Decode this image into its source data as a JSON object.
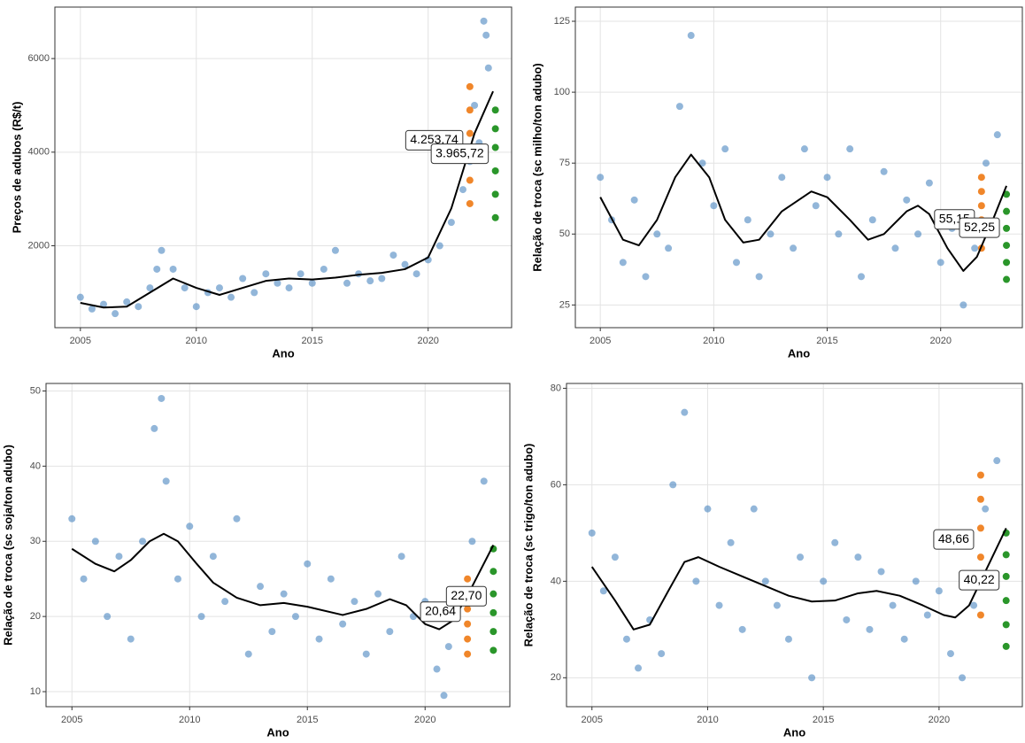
{
  "chart_data": [
    {
      "type": "scatter",
      "x_label": "Ano",
      "y_label": "Preços de adubos (R$/t)",
      "xlim": [
        2003.9,
        2023.6
      ],
      "xticks": [
        2005,
        2010,
        2015,
        2020
      ],
      "ylim": [
        250,
        7100
      ],
      "yticks": [
        2000,
        4000,
        6000
      ],
      "grid": true,
      "series": [
        {
          "mark": "point",
          "color": "#4a86c0",
          "x": [
            2005,
            2005.5,
            2006,
            2006.5,
            2007,
            2007.5,
            2008,
            2008.5,
            2009,
            2009.5,
            2010,
            2010.5,
            2011,
            2011.5,
            2012,
            2012.5,
            2013,
            2013.5,
            2014,
            2014.5,
            2015,
            2015.5,
            2016,
            2016.5,
            2017,
            2017.5,
            2018,
            2018.5,
            2019,
            2019.5,
            2020,
            2020.5,
            2021,
            2021.5,
            2022,
            2022.5,
            2022.2,
            2022.4,
            2022.6,
            2008.3,
            2021.8
          ],
          "values": [
            900,
            650,
            750,
            550,
            800,
            700,
            1100,
            1900,
            1500,
            1100,
            700,
            1000,
            1100,
            900,
            1300,
            1000,
            1400,
            1200,
            1100,
            1400,
            1200,
            1500,
            1900,
            1200,
            1400,
            1250,
            1300,
            1800,
            1600,
            1400,
            1700,
            2000,
            2500,
            3200,
            5000,
            6500,
            4200,
            6800,
            5800,
            1500,
            3800
          ]
        },
        {
          "mark": "point",
          "color": "#f0862a",
          "x": [
            2021.8,
            2021.8,
            2021.8,
            2021.8,
            2021.8,
            2021.8
          ],
          "values": [
            2900,
            3400,
            3900,
            4400,
            4900,
            5400
          ]
        },
        {
          "mark": "point",
          "color": "#2a962a",
          "x": [
            2022.9,
            2022.9,
            2022.9,
            2022.9,
            2022.9,
            2022.9
          ],
          "values": [
            2600,
            3100,
            3600,
            4100,
            4500,
            4900
          ]
        },
        {
          "mark": "line",
          "color": "#000000",
          "x": [
            2005,
            2006,
            2007,
            2008,
            2009,
            2010,
            2011,
            2012,
            2013,
            2014,
            2015,
            2016,
            2017,
            2018,
            2019,
            2020,
            2021,
            2022,
            2022.8
          ],
          "values": [
            780,
            680,
            700,
            1000,
            1300,
            1100,
            950,
            1100,
            1250,
            1300,
            1280,
            1320,
            1380,
            1420,
            1500,
            1750,
            2800,
            4400,
            5300
          ]
        }
      ],
      "annotations": [
        {
          "x": 2021.8,
          "value": 4253.74,
          "label": "4.253,74"
        },
        {
          "x": 2022.9,
          "value": 3965.72,
          "label": "3.965,72"
        }
      ]
    },
    {
      "type": "scatter",
      "x_label": "Ano",
      "y_label": "Relação de troca (sc milho/ton adubo)",
      "xlim": [
        2003.9,
        2023.6
      ],
      "xticks": [
        2005,
        2010,
        2015,
        2020
      ],
      "ylim": [
        17,
        130
      ],
      "yticks": [
        25,
        50,
        75,
        100,
        125
      ],
      "grid": true,
      "series": [
        {
          "mark": "point",
          "color": "#4a86c0",
          "x": [
            2005,
            2005.5,
            2006,
            2006.5,
            2007,
            2007.5,
            2008,
            2008.5,
            2009,
            2009.5,
            2010,
            2010.5,
            2011,
            2011.5,
            2012,
            2012.5,
            2013,
            2013.5,
            2014,
            2014.5,
            2015,
            2015.5,
            2016,
            2016.5,
            2017,
            2017.5,
            2018,
            2018.5,
            2019,
            2019.5,
            2020,
            2020.5,
            2021,
            2021.5,
            2022,
            2022.5
          ],
          "values": [
            70,
            55,
            40,
            62,
            35,
            50,
            45,
            95,
            120,
            75,
            60,
            80,
            40,
            55,
            35,
            50,
            70,
            45,
            80,
            60,
            70,
            50,
            80,
            35,
            55,
            72,
            45,
            62,
            50,
            68,
            40,
            52,
            25,
            45,
            75,
            85
          ]
        },
        {
          "mark": "point",
          "color": "#f0862a",
          "x": [
            2021.8,
            2021.8,
            2021.8,
            2021.8,
            2021.8,
            2021.8
          ],
          "values": [
            45,
            50,
            55,
            60,
            65,
            70
          ]
        },
        {
          "mark": "point",
          "color": "#2a962a",
          "x": [
            2022.9,
            2022.9,
            2022.9,
            2022.9,
            2022.9,
            2022.9
          ],
          "values": [
            34,
            40,
            46,
            52,
            58,
            64
          ]
        },
        {
          "mark": "line",
          "color": "#000000",
          "x": [
            2005,
            2006,
            2006.7,
            2007.5,
            2008.3,
            2009,
            2009.8,
            2010.5,
            2011.3,
            2012,
            2013,
            2014.3,
            2015,
            2016,
            2016.8,
            2017.5,
            2018.5,
            2019,
            2019.5,
            2020.3,
            2021,
            2021.6,
            2022.3,
            2022.9
          ],
          "values": [
            63,
            48,
            46,
            55,
            70,
            78,
            70,
            55,
            47,
            48,
            58,
            65,
            63,
            55,
            48,
            50,
            58,
            60,
            57,
            45,
            37,
            42,
            55,
            67
          ]
        }
      ],
      "annotations": [
        {
          "x": 2021.8,
          "value": 55.15,
          "label": "55,15"
        },
        {
          "x": 2022.9,
          "value": 52.25,
          "label": "52,25"
        }
      ]
    },
    {
      "type": "scatter",
      "x_label": "Ano",
      "y_label": "Relação de troca (sc soja/ton adubo)",
      "xlim": [
        2003.9,
        2023.6
      ],
      "xticks": [
        2005,
        2010,
        2015,
        2020
      ],
      "ylim": [
        8,
        51
      ],
      "yticks": [
        10,
        20,
        30,
        40,
        50
      ],
      "grid": true,
      "series": [
        {
          "mark": "point",
          "color": "#4a86c0",
          "x": [
            2005,
            2005.5,
            2006,
            2006.5,
            2007,
            2007.5,
            2008,
            2008.5,
            2009,
            2009.5,
            2010,
            2010.5,
            2011,
            2011.5,
            2012,
            2012.5,
            2013,
            2013.5,
            2014,
            2014.5,
            2015,
            2015.5,
            2016,
            2016.5,
            2017,
            2017.5,
            2018,
            2018.5,
            2019,
            2019.5,
            2020,
            2020.5,
            2021,
            2021.5,
            2022,
            2022.5,
            2008.8,
            2020.8
          ],
          "values": [
            33,
            25,
            30,
            20,
            28,
            17,
            30,
            45,
            38,
            25,
            32,
            20,
            28,
            22,
            33,
            15,
            24,
            18,
            23,
            20,
            27,
            17,
            25,
            19,
            22,
            15,
            23,
            18,
            28,
            20,
            22,
            13,
            16,
            22,
            30,
            38,
            49,
            9.5
          ]
        },
        {
          "mark": "point",
          "color": "#f0862a",
          "x": [
            2021.8,
            2021.8,
            2021.8,
            2021.8,
            2021.8,
            2021.8
          ],
          "values": [
            15,
            17,
            19,
            21,
            23,
            25
          ]
        },
        {
          "mark": "point",
          "color": "#2a962a",
          "x": [
            2022.9,
            2022.9,
            2022.9,
            2022.9,
            2022.9,
            2022.9
          ],
          "values": [
            15.5,
            18,
            20.5,
            23,
            26,
            29
          ]
        },
        {
          "mark": "line",
          "color": "#000000",
          "x": [
            2005,
            2006,
            2006.8,
            2007.5,
            2008.3,
            2008.9,
            2009.5,
            2010.3,
            2011,
            2012,
            2013,
            2014,
            2015,
            2016.5,
            2017.5,
            2018.5,
            2019.2,
            2020,
            2020.6,
            2021.2,
            2022,
            2022.9
          ],
          "values": [
            29,
            27,
            26,
            27.5,
            30,
            31,
            30,
            27,
            24.5,
            22.5,
            21.5,
            21.8,
            21.3,
            20.2,
            21,
            22.3,
            21.5,
            19,
            18.3,
            19.5,
            24,
            29.5
          ]
        }
      ],
      "annotations": [
        {
          "x": 2021.8,
          "value": 20.64,
          "label": "20,64"
        },
        {
          "x": 2022.9,
          "value": 22.7,
          "label": "22,70"
        }
      ]
    },
    {
      "type": "scatter",
      "x_label": "Ano",
      "y_label": "Relação de troca (sc trigo/ton adubo)",
      "xlim": [
        2003.9,
        2023.6
      ],
      "xticks": [
        2005,
        2010,
        2015,
        2020
      ],
      "ylim": [
        14,
        81
      ],
      "yticks": [
        20,
        40,
        60,
        80
      ],
      "grid": true,
      "series": [
        {
          "mark": "point",
          "color": "#4a86c0",
          "x": [
            2005,
            2005.5,
            2006,
            2006.5,
            2007,
            2007.5,
            2008,
            2008.5,
            2009,
            2009.5,
            2010,
            2010.5,
            2011,
            2011.5,
            2012,
            2012.5,
            2013,
            2013.5,
            2014,
            2014.5,
            2015,
            2015.5,
            2016,
            2016.5,
            2017,
            2017.5,
            2018,
            2018.5,
            2019,
            2019.5,
            2020,
            2020.5,
            2021,
            2021.5,
            2022,
            2022.5
          ],
          "values": [
            50,
            38,
            45,
            28,
            22,
            32,
            25,
            60,
            75,
            40,
            55,
            35,
            48,
            30,
            55,
            40,
            35,
            28,
            45,
            20,
            40,
            48,
            32,
            45,
            30,
            42,
            35,
            28,
            40,
            33,
            38,
            25,
            20,
            35,
            55,
            65
          ]
        },
        {
          "mark": "point",
          "color": "#f0862a",
          "x": [
            2021.8,
            2021.8,
            2021.8,
            2021.8,
            2021.8,
            2021.8
          ],
          "values": [
            33,
            39,
            45,
            51,
            57,
            62
          ]
        },
        {
          "mark": "point",
          "color": "#2a962a",
          "x": [
            2022.9,
            2022.9,
            2022.9,
            2022.9,
            2022.9,
            2022.9
          ],
          "values": [
            26.5,
            31,
            36,
            41,
            45.5,
            50
          ]
        },
        {
          "mark": "line",
          "color": "#000000",
          "x": [
            2005,
            2006,
            2006.8,
            2007.5,
            2008.3,
            2009,
            2009.6,
            2010.5,
            2011.5,
            2012.5,
            2013.5,
            2014.5,
            2015.5,
            2016.5,
            2017.3,
            2018.3,
            2019.3,
            2020.2,
            2020.7,
            2021.3,
            2022,
            2022.9
          ],
          "values": [
            43,
            36,
            30,
            31,
            38,
            44,
            45,
            43,
            41,
            39,
            37,
            35.8,
            36,
            37.5,
            38,
            37,
            35,
            33,
            32.5,
            35,
            42,
            51
          ]
        }
      ],
      "annotations": [
        {
          "x": 2021.8,
          "value": 48.66,
          "label": "48,66"
        },
        {
          "x": 2022.9,
          "value": 40.22,
          "label": "40,22"
        }
      ]
    }
  ]
}
